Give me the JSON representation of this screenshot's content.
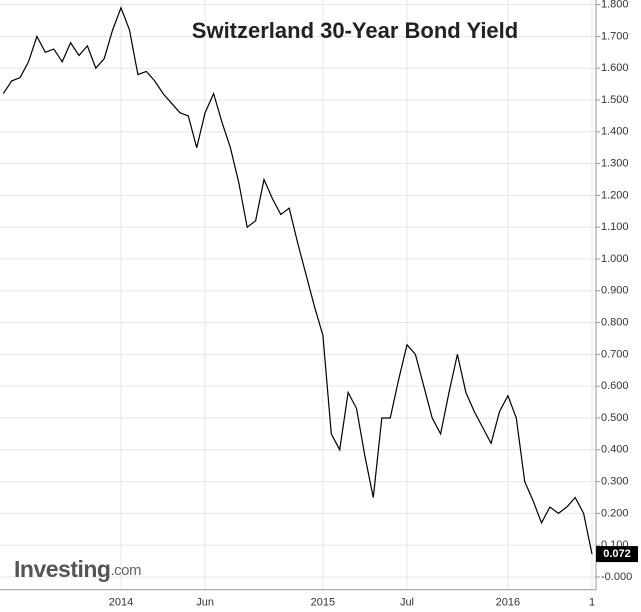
{
  "chart_data": {
    "type": "line",
    "title": "Switzerland 30-Year Bond Yield",
    "categories": [
      null,
      null,
      null,
      null,
      null,
      null,
      null,
      null,
      null,
      null,
      null,
      null,
      null,
      null,
      "2014",
      null,
      null,
      null,
      null,
      null,
      null,
      null,
      null,
      null,
      "Jun",
      null,
      null,
      null,
      null,
      null,
      null,
      null,
      null,
      null,
      null,
      null,
      null,
      null,
      "2015",
      null,
      null,
      null,
      null,
      null,
      null,
      null,
      null,
      null,
      "Jul",
      null,
      null,
      null,
      null,
      null,
      null,
      null,
      null,
      null,
      null,
      null,
      "2016",
      null,
      null,
      null,
      null,
      null,
      null,
      null,
      null,
      null,
      "1"
    ],
    "series": [
      {
        "color": "#000000",
        "values": [
          1.52,
          1.56,
          1.57,
          1.62,
          1.7,
          1.65,
          1.66,
          1.62,
          1.68,
          1.64,
          1.67,
          1.6,
          1.63,
          1.72,
          1.79,
          1.72,
          1.58,
          1.59,
          1.56,
          1.52,
          1.49,
          1.46,
          1.45,
          1.35,
          1.46,
          1.52,
          1.43,
          1.35,
          1.24,
          1.1,
          1.12,
          1.25,
          1.19,
          1.14,
          1.16,
          1.05,
          0.95,
          0.85,
          0.76,
          0.45,
          0.4,
          0.58,
          0.53,
          0.38,
          0.25,
          0.5,
          0.5,
          0.62,
          0.73,
          0.7,
          0.6,
          0.5,
          0.45,
          0.58,
          0.7,
          0.58,
          0.52,
          0.47,
          0.42,
          0.52,
          0.57,
          0.5,
          0.3,
          0.24,
          0.17,
          0.22,
          0.2,
          0.22,
          0.25,
          0.2,
          0.072
        ]
      }
    ],
    "ylim": [
      -0.04,
      1.8
    ],
    "yticks": [
      {
        "value": 0,
        "label": "-0.000"
      },
      {
        "value": 0.1,
        "label": "0.100"
      },
      {
        "value": 0.2,
        "label": "0.200"
      },
      {
        "value": 0.3,
        "label": "0.300"
      },
      {
        "value": 0.4,
        "label": "0.400"
      },
      {
        "value": 0.5,
        "label": "0.500"
      },
      {
        "value": 0.6,
        "label": "0.600"
      },
      {
        "value": 0.7,
        "label": "0.700"
      },
      {
        "value": 0.8,
        "label": "0.800"
      },
      {
        "value": 0.9,
        "label": "0.900"
      },
      {
        "value": 1.0,
        "label": "1.000"
      },
      {
        "value": 1.1,
        "label": "1.100"
      },
      {
        "value": 1.2,
        "label": "1.200"
      },
      {
        "value": 1.3,
        "label": "1.300"
      },
      {
        "value": 1.4,
        "label": "1.400"
      },
      {
        "value": 1.5,
        "label": "1.500"
      },
      {
        "value": 1.6,
        "label": "1.600"
      },
      {
        "value": 1.7,
        "label": "1.700"
      },
      {
        "value": 1.8,
        "label": "1.800"
      }
    ],
    "grid": true,
    "annotations": [
      {
        "value": 0.072,
        "label": "0.072"
      }
    ],
    "brand": {
      "name": "Investing",
      "suffix": ".com"
    }
  }
}
